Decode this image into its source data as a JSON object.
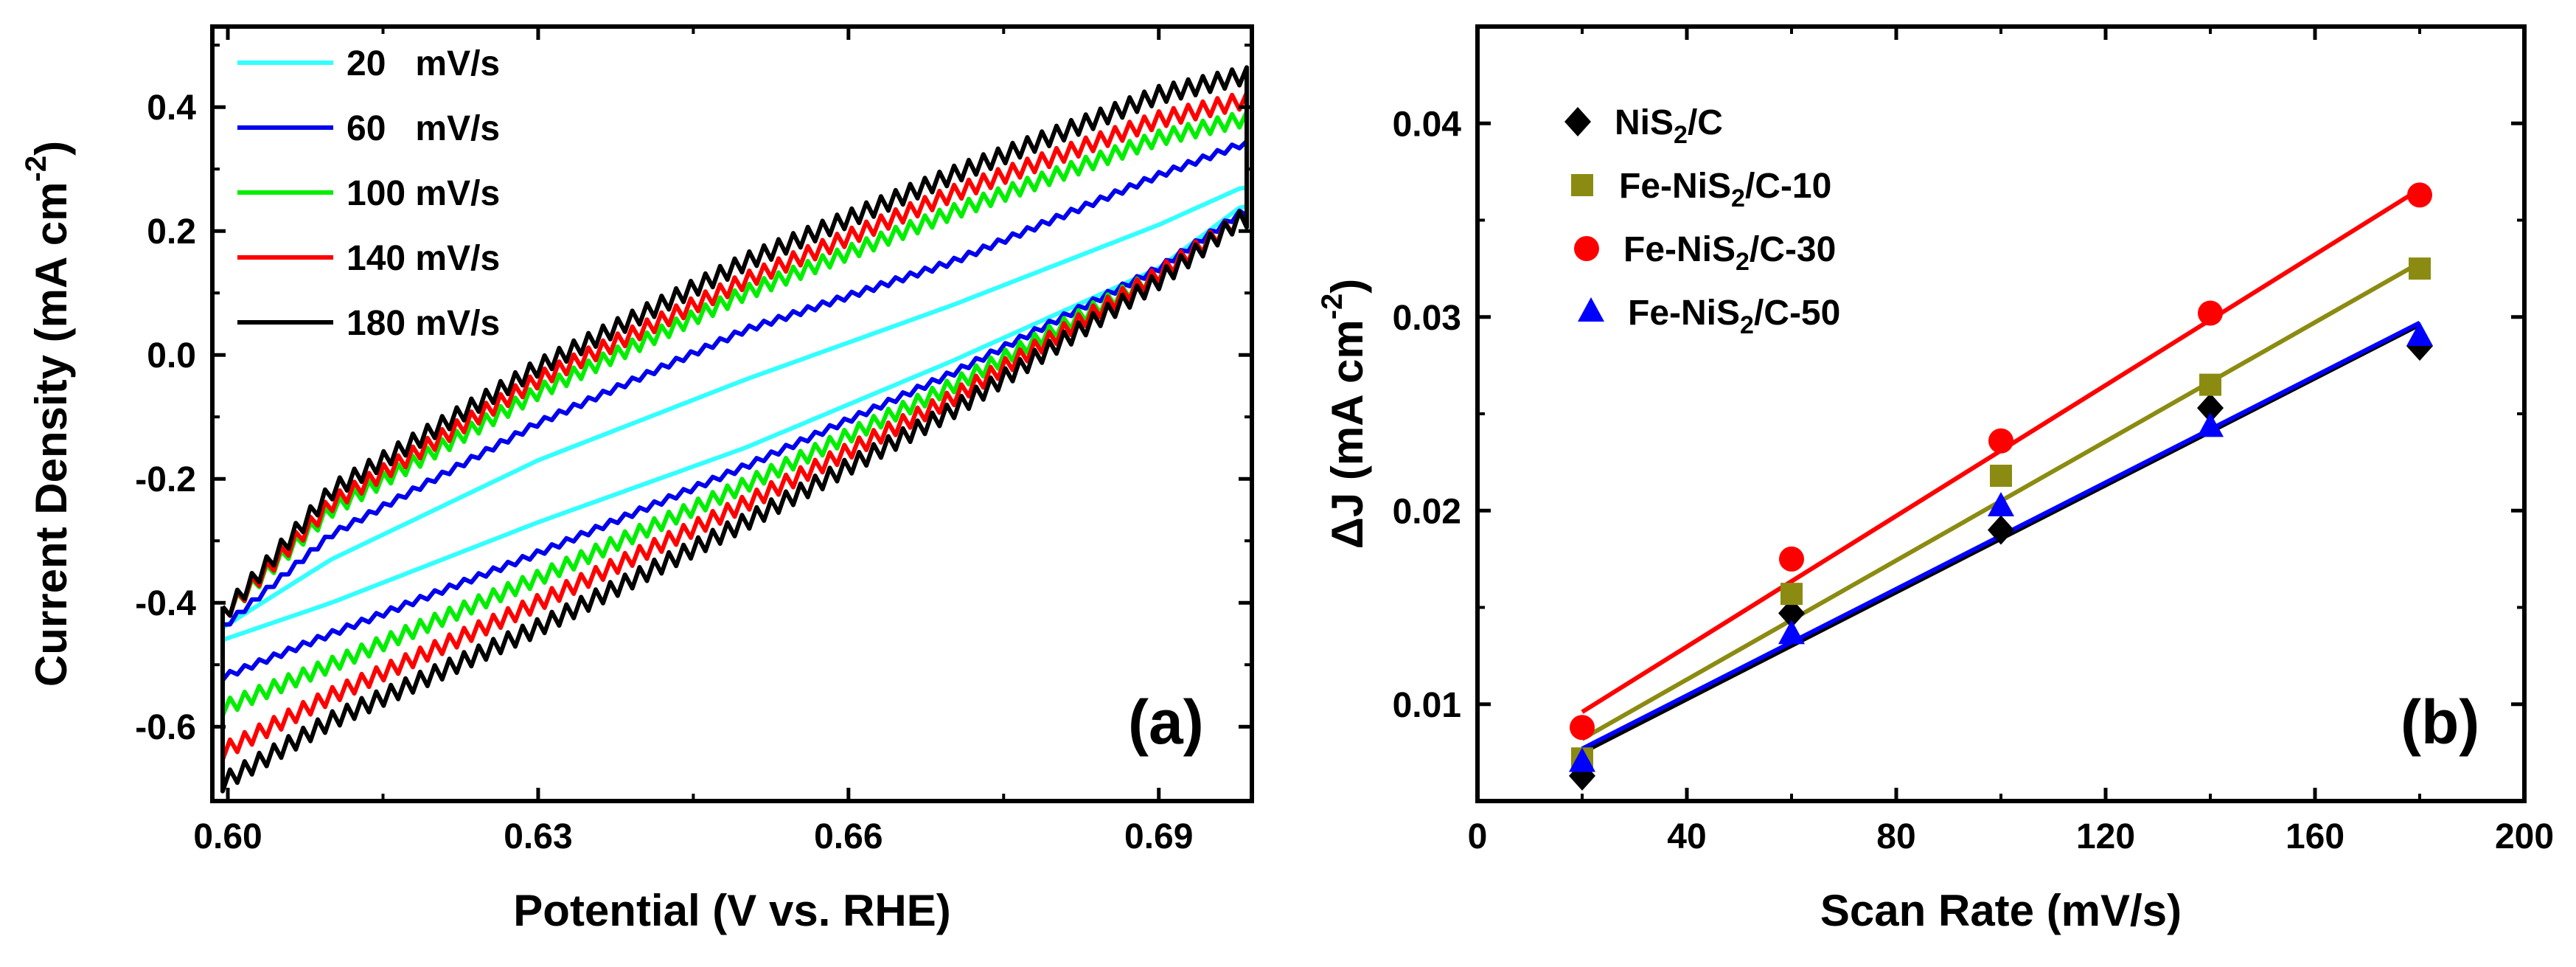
{
  "figure": {
    "panel_a_tag": "(a)",
    "panel_b_tag": "(b)"
  },
  "chart_data": [
    {
      "type": "line",
      "panel": "(a)",
      "title": "",
      "xlabel": "Potential (V vs. RHE)",
      "ylabel": "Current Density (mA cm",
      "ylabel_superscript": "-2",
      "ylabel_close": ")",
      "xlim": [
        0.5985,
        0.699
      ],
      "ylim": [
        -0.72,
        0.53
      ],
      "xticks": [
        0.6,
        0.63,
        0.66,
        0.69
      ],
      "xtick_labels": [
        "0.60",
        "0.63",
        "0.66",
        "0.69"
      ],
      "yticks": [
        -0.6,
        -0.4,
        -0.2,
        0.0,
        0.2,
        0.4
      ],
      "ytick_labels": [
        "-0.6",
        "-0.4",
        "-0.2",
        "0.0",
        "0.2",
        "0.4"
      ],
      "legend_position": "top-left",
      "x_range": [
        0.5995,
        0.6985
      ],
      "series": [
        {
          "name": "20   mV/s",
          "color": "#33ffff",
          "upper": [
            [
              0.5995,
              -0.44
            ],
            [
              0.61,
              -0.33
            ],
            [
              0.63,
              -0.17
            ],
            [
              0.65,
              -0.04
            ],
            [
              0.67,
              0.08
            ],
            [
              0.69,
              0.21
            ],
            [
              0.698,
              0.27
            ]
          ],
          "lower": [
            [
              0.5995,
              -0.46
            ],
            [
              0.61,
              -0.4
            ],
            [
              0.63,
              -0.27
            ],
            [
              0.65,
              -0.15
            ],
            [
              0.67,
              -0.01
            ],
            [
              0.69,
              0.14
            ],
            [
              0.698,
              0.24
            ]
          ],
          "ripple": 0.0
        },
        {
          "name": "60   mV/s",
          "color": "#0000ee",
          "upper": [
            [
              0.5995,
              -0.44
            ],
            [
              0.61,
              -0.29
            ],
            [
              0.63,
              -0.11
            ],
            [
              0.65,
              0.04
            ],
            [
              0.67,
              0.15
            ],
            [
              0.69,
              0.29
            ],
            [
              0.698,
              0.34
            ]
          ],
          "lower": [
            [
              0.5995,
              -0.52
            ],
            [
              0.61,
              -0.45
            ],
            [
              0.63,
              -0.32
            ],
            [
              0.65,
              -0.18
            ],
            [
              0.67,
              -0.03
            ],
            [
              0.69,
              0.14
            ],
            [
              0.698,
              0.23
            ]
          ],
          "ripple": 0.005
        },
        {
          "name": "100 mV/s",
          "color": "#00ee00",
          "upper": [
            [
              0.5995,
              -0.42
            ],
            [
              0.61,
              -0.25
            ],
            [
              0.63,
              -0.06
            ],
            [
              0.65,
              0.1
            ],
            [
              0.67,
              0.23
            ],
            [
              0.69,
              0.35
            ],
            [
              0.698,
              0.38
            ]
          ],
          "lower": [
            [
              0.5995,
              -0.57
            ],
            [
              0.61,
              -0.5
            ],
            [
              0.63,
              -0.36
            ],
            [
              0.65,
              -0.21
            ],
            [
              0.67,
              -0.05
            ],
            [
              0.69,
              0.13
            ],
            [
              0.698,
              0.22
            ]
          ],
          "ripple": 0.012
        },
        {
          "name": "140 mV/s",
          "color": "#ff0000",
          "upper": [
            [
              0.5995,
              -0.42
            ],
            [
              0.61,
              -0.24
            ],
            [
              0.63,
              -0.04
            ],
            [
              0.65,
              0.12
            ],
            [
              0.67,
              0.26
            ],
            [
              0.69,
              0.38
            ],
            [
              0.698,
              0.41
            ]
          ],
          "lower": [
            [
              0.5995,
              -0.64
            ],
            [
              0.61,
              -0.55
            ],
            [
              0.63,
              -0.4
            ],
            [
              0.65,
              -0.24
            ],
            [
              0.67,
              -0.07
            ],
            [
              0.69,
              0.13
            ],
            [
              0.698,
              0.22
            ]
          ],
          "ripple": 0.013
        },
        {
          "name": "180 mV/s",
          "color": "#000000",
          "upper": [
            [
              0.5995,
              -0.42
            ],
            [
              0.61,
              -0.22
            ],
            [
              0.63,
              -0.02
            ],
            [
              0.65,
              0.15
            ],
            [
              0.67,
              0.29
            ],
            [
              0.69,
              0.42
            ],
            [
              0.698,
              0.45
            ]
          ],
          "lower": [
            [
              0.5995,
              -0.69
            ],
            [
              0.61,
              -0.59
            ],
            [
              0.63,
              -0.44
            ],
            [
              0.65,
              -0.27
            ],
            [
              0.67,
              -0.09
            ],
            [
              0.69,
              0.12
            ],
            [
              0.698,
              0.22
            ]
          ],
          "ripple": 0.014
        }
      ]
    },
    {
      "type": "scatter",
      "panel": "(b)",
      "title": "",
      "xlabel": "Scan Rate (mV/s)",
      "ylabel": "ΔJ (mA cm",
      "ylabel_superscript": "-2",
      "ylabel_close": ")",
      "xlim": [
        0,
        200
      ],
      "ylim": [
        0.005,
        0.045
      ],
      "xticks": [
        0,
        40,
        80,
        120,
        160,
        200
      ],
      "xtick_labels": [
        "0",
        "40",
        "80",
        "120",
        "160",
        "200"
      ],
      "yticks": [
        0.01,
        0.02,
        0.03,
        0.04
      ],
      "ytick_labels": [
        "0.01",
        "0.02",
        "0.03",
        "0.04"
      ],
      "legend_position": "top-left",
      "series": [
        {
          "name": "NiS",
          "subscript": "2",
          "suffix": "/C",
          "color": "#000000",
          "marker": "diamond",
          "x": [
            20,
            60,
            100,
            140,
            180
          ],
          "y": [
            0.0063,
            0.0147,
            0.019,
            0.0253,
            0.0285
          ],
          "fit": [
            [
              20,
              0.0075
            ],
            [
              180,
              0.0296
            ]
          ]
        },
        {
          "name": "Fe-NiS",
          "subscript": "2",
          "suffix": "/C-10",
          "color": "#8b8b12",
          "marker": "square",
          "x": [
            20,
            60,
            100,
            140,
            180
          ],
          "y": [
            0.0072,
            0.0157,
            0.0218,
            0.0265,
            0.0325
          ],
          "fit": [
            [
              20,
              0.0082
            ],
            [
              180,
              0.0328
            ]
          ]
        },
        {
          "name": "Fe-NiS",
          "subscript": "2",
          "suffix": "/C-30",
          "color": "#ff0000",
          "marker": "circle",
          "x": [
            20,
            60,
            100,
            140,
            180
          ],
          "y": [
            0.0088,
            0.0175,
            0.0236,
            0.0302,
            0.0363
          ],
          "fit": [
            [
              20,
              0.0096
            ],
            [
              180,
              0.0366
            ]
          ]
        },
        {
          "name": "Fe-NiS",
          "subscript": "2",
          "suffix": "/C-50",
          "color": "#0000ff",
          "marker": "triangle",
          "x": [
            20,
            60,
            100,
            140,
            180
          ],
          "y": [
            0.007,
            0.0136,
            0.0202,
            0.0243,
            0.029
          ],
          "fit": [
            [
              20,
              0.0077
            ],
            [
              180,
              0.0297
            ]
          ]
        }
      ]
    }
  ]
}
